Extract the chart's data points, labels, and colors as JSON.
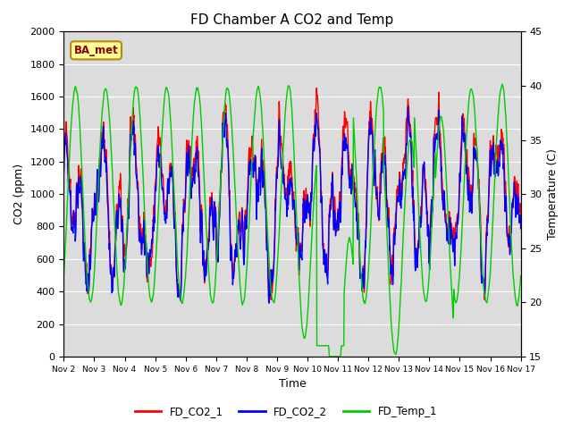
{
  "title": "FD Chamber A CO2 and Temp",
  "xlabel": "Time",
  "ylabel_left": "CO2 (ppm)",
  "ylabel_right": "Temperature (C)",
  "ylim_left": [
    0,
    2000
  ],
  "ylim_right": [
    15,
    45
  ],
  "yticks_left": [
    0,
    200,
    400,
    600,
    800,
    1000,
    1200,
    1400,
    1600,
    1800,
    2000
  ],
  "yticks_right": [
    15,
    20,
    25,
    30,
    35,
    40,
    45
  ],
  "x_tick_labels": [
    "Nov 2",
    "Nov 3",
    "Nov 4",
    "Nov 5",
    "Nov 6",
    "Nov 7",
    "Nov 8",
    "Nov 9",
    "Nov 10",
    "Nov 11",
    "Nov 12",
    "Nov 13",
    "Nov 14",
    "Nov 15",
    "Nov 16",
    "Nov 17"
  ],
  "annotation_text": "BA_met",
  "annotation_color": "#8B0000",
  "annotation_bg": "#FFFF99",
  "annotation_edge": "#B8860B",
  "color_co2_1": "#FF0000",
  "color_co2_2": "#0000FF",
  "color_temp": "#00CC00",
  "legend_labels": [
    "FD_CO2_1",
    "FD_CO2_2",
    "FD_Temp_1"
  ],
  "plot_bg_color": "#DCDCDC",
  "fig_bg_color": "#FFFFFF",
  "grid_color": "#FFFFFF",
  "line_width": 1.0,
  "n_days": 15,
  "pts_per_day": 96
}
